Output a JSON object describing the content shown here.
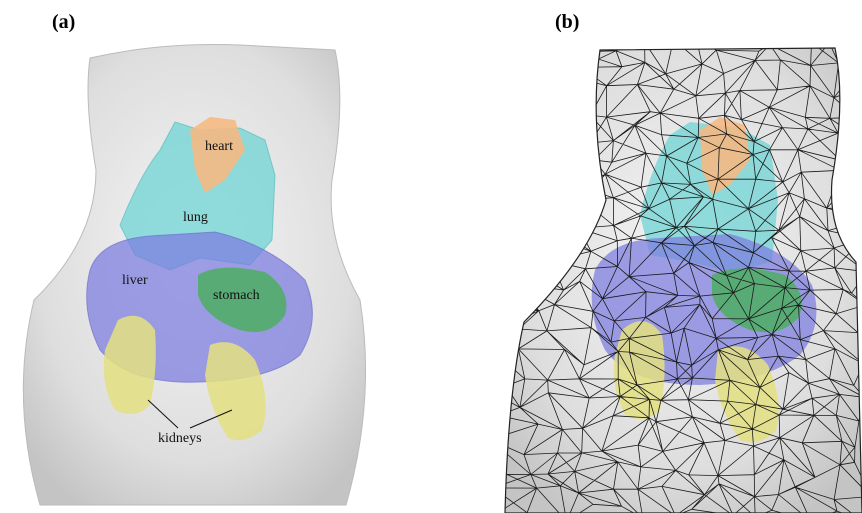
{
  "panels": [
    {
      "label": "(a)",
      "annotations": {
        "heart": "heart",
        "lung": "lung",
        "liver": "liver",
        "stomach": "stomach",
        "kidneys": "kidneys"
      }
    },
    {
      "label": "(b)"
    }
  ]
}
